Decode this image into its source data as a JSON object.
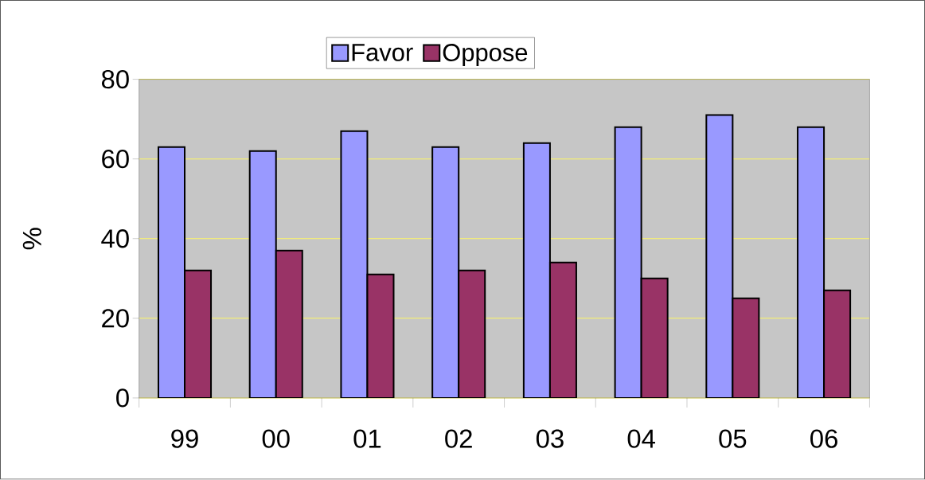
{
  "chart_data": {
    "type": "bar",
    "ylabel": "%",
    "categories": [
      "99",
      "00",
      "01",
      "02",
      "03",
      "04",
      "05",
      "06"
    ],
    "series": [
      {
        "name": "Favor",
        "color": "#9999ff",
        "values": [
          63,
          62,
          67,
          63,
          64,
          68,
          71,
          68
        ]
      },
      {
        "name": "Oppose",
        "color": "#993366",
        "values": [
          32,
          37,
          31,
          32,
          34,
          30,
          25,
          27
        ]
      }
    ],
    "ylim": [
      0,
      80
    ],
    "yticks": [
      0,
      20,
      40,
      60,
      80
    ],
    "grid": "y",
    "legend": "top"
  }
}
